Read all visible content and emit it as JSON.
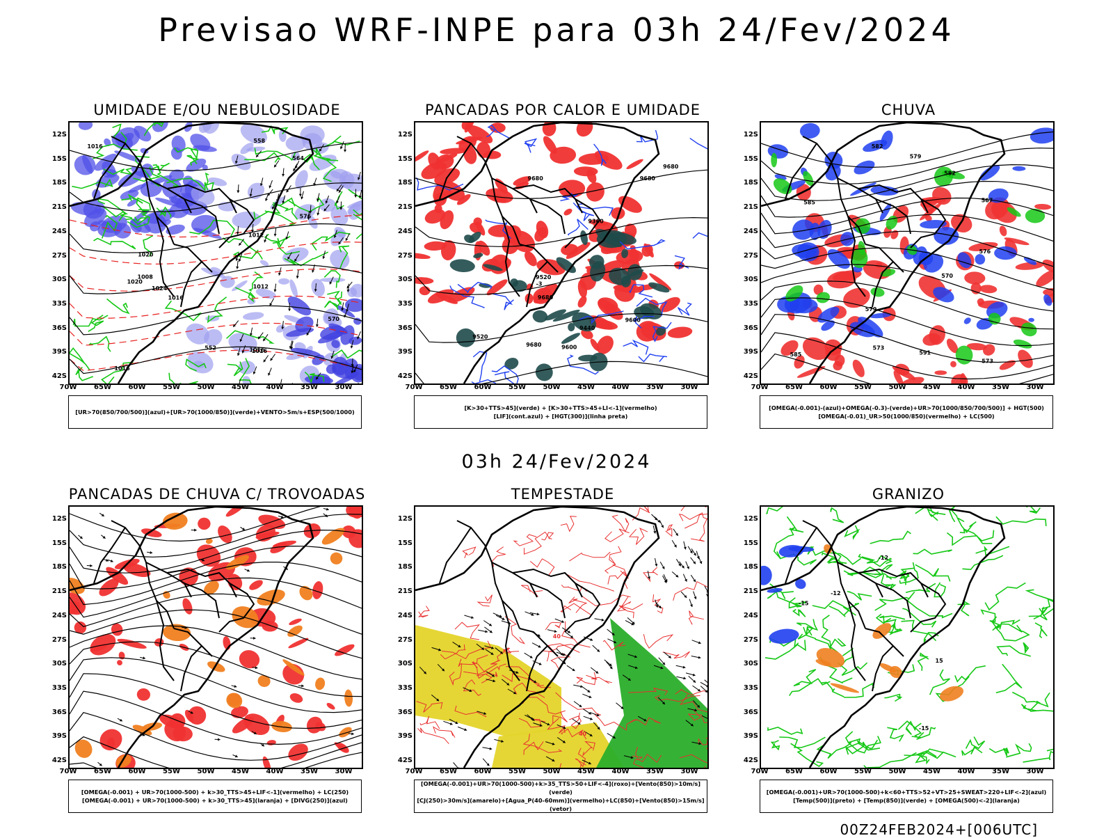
{
  "title": "Previsao WRF-INPE  para 03h 24/Fev/2024",
  "subtitle": "03h 24/Fev/2024",
  "footer": "00Z24FEB2024+[006UTC]",
  "axes": {
    "lat": [
      "12S",
      "15S",
      "18S",
      "21S",
      "24S",
      "27S",
      "30S",
      "33S",
      "36S",
      "39S",
      "42S"
    ],
    "lon": [
      "70W",
      "65W",
      "60W",
      "55W",
      "50W",
      "45W",
      "40W",
      "35W",
      "30W"
    ]
  },
  "panels": [
    {
      "title": "UMIDADE E/OU NEBULOSIDADE",
      "legend": [
        "[UR>70(850/700/500)](azul)+[UR>70(1000/850)](verde)+VENTO>5m/s+ESP(500/1000)"
      ],
      "contour_labels": [
        "1012",
        "1016",
        "1016",
        "1016",
        "1016",
        "1020",
        "1020",
        "1024",
        "1016",
        "1012",
        "1008",
        "576",
        "570",
        "564",
        "558",
        "552"
      ]
    },
    {
      "title": "PANCADAS POR CALOR E UMIDADE",
      "legend": [
        "[K>30+TTS>45](verde) + [K>30+TTS>45+LI<-1](vermelho)",
        "[LIF](cont.azul) + [HGT(300)](linha preta)"
      ],
      "contour_labels": [
        "9680",
        "9680",
        "9680",
        "9680",
        "9680",
        "9600",
        "9600",
        "9520",
        "9520",
        "9440",
        "9360",
        "-3"
      ]
    },
    {
      "title": "CHUVA",
      "legend": [
        "[OMEGA(-0.001)-(azul)+OMEGA(-0.3)-(verde)+UR>70(1000/850/700/500)] + HGT(500)",
        "[OMEGA(-0.01)_UR>50(1000/850)(vermelho) + LC(500)"
      ],
      "contour_labels": [
        "585",
        "585",
        "582",
        "582",
        "579",
        "579",
        "576",
        "573",
        "573",
        "570",
        "567",
        "591"
      ]
    },
    {
      "title": "PANCADAS DE CHUVA C/ TROVOADAS",
      "legend": [
        "[OMEGA(-0.001) + UR>70(1000-500) + k>30_TTS>45+LIF<-1](vermelho) + LC(250)",
        "[OMEGA(-0.001) + UR>70(1000-500) + k>30_TTS>45](laranja) + [DIVG(250)](azul)"
      ],
      "contour_labels": []
    },
    {
      "title": "TEMPESTADE",
      "legend": [
        "[OMEGA(-0.001)+UR>70(1000-500)+k>35_TTS>50+LIF<-4](roxo)+[Vento(850)>10m/s](verde)",
        "[CJ(250)>30m/s](amarelo)+[Agua_P(40-60mm)](vermelho)+LC(850)+[Vento(850)>15m/s](vetor)"
      ],
      "contour_labels": [
        "40",
        "40"
      ]
    },
    {
      "title": "GRANIZO",
      "legend": [
        "[OMEGA(-0.001)+UR>70(1000-500)+k<60+TTS>52+VT>25+SWEAT>220+LIF<-2](azul)",
        "[Temp(500)](preto) + [Temp(850)](verde) + [OMEGA(500)<-2](laranja)"
      ],
      "contour_labels": [
        "-15",
        "-12",
        "-12",
        "15",
        "-15"
      ]
    }
  ]
}
